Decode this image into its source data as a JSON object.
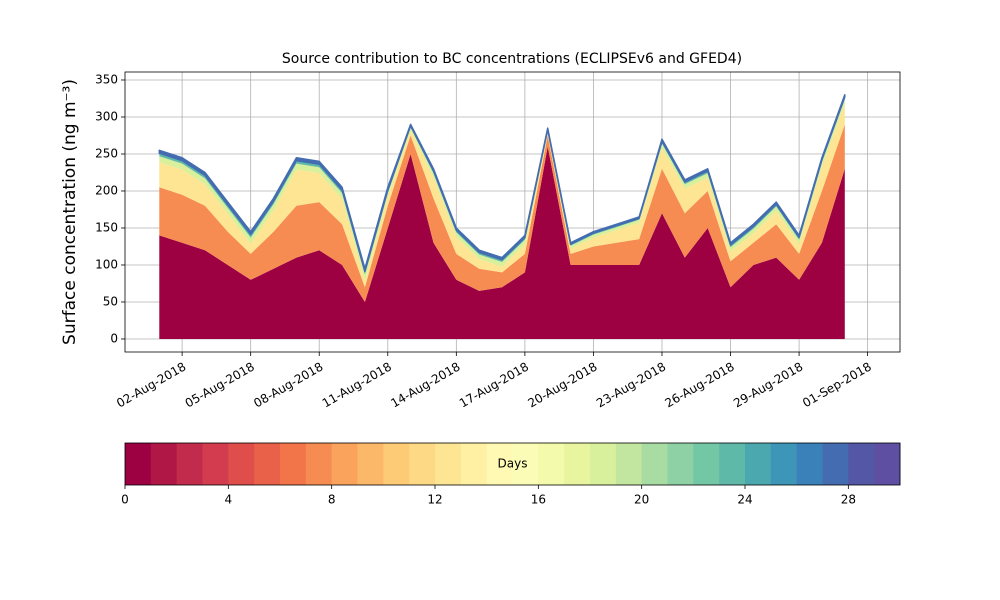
{
  "chart_data": {
    "type": "stacked_area",
    "title": "Source contribution to BC concentrations (ECLIPSEv6 and GFED4)",
    "y_label": "Surface concentration (ng m⁻³)",
    "x": [
      "2018-08-01",
      "2018-08-02",
      "2018-08-03",
      "2018-08-04",
      "2018-08-05",
      "2018-08-06",
      "2018-08-07",
      "2018-08-08",
      "2018-08-09",
      "2018-08-10",
      "2018-08-11",
      "2018-08-12",
      "2018-08-13",
      "2018-08-14",
      "2018-08-15",
      "2018-08-16",
      "2018-08-17",
      "2018-08-18",
      "2018-08-19",
      "2018-08-20",
      "2018-08-21",
      "2018-08-22",
      "2018-08-23",
      "2018-08-24",
      "2018-08-25",
      "2018-08-26",
      "2018-08-27",
      "2018-08-28",
      "2018-08-29",
      "2018-08-30",
      "2018-08-31"
    ],
    "series": [
      {
        "color": "#9e0142",
        "values": [
          140,
          130,
          120,
          100,
          80,
          95,
          110,
          120,
          100,
          50,
          150,
          250,
          130,
          80,
          65,
          70,
          90,
          260,
          100,
          100,
          100,
          100,
          170,
          110,
          150,
          70,
          100,
          110,
          80,
          130,
          230
        ]
      },
      {
        "color": "#f68c52",
        "values": [
          65,
          65,
          60,
          45,
          35,
          50,
          70,
          65,
          55,
          20,
          30,
          25,
          60,
          35,
          30,
          20,
          25,
          15,
          15,
          25,
          30,
          35,
          60,
          60,
          50,
          35,
          30,
          45,
          35,
          70,
          60
        ]
      },
      {
        "color": "#fee593",
        "values": [
          34,
          34,
          29,
          24,
          14,
          29,
          49,
          39,
          34,
          9,
          13,
          7,
          28,
          23,
          13,
          8,
          13,
          4,
          7,
          12,
          17,
          22,
          28,
          33,
          18,
          13,
          13,
          18,
          13,
          33,
          28
        ]
      },
      {
        "color": "#d8ef9c",
        "values": [
          8,
          8,
          8,
          8,
          8,
          8,
          8,
          8,
          8,
          8,
          4,
          4,
          6,
          6,
          6,
          6,
          6,
          2,
          4,
          4,
          4,
          4,
          6,
          6,
          6,
          6,
          6,
          6,
          6,
          6,
          6
        ]
      },
      {
        "color": "#5fb9a9",
        "values": [
          4,
          4,
          4,
          4,
          4,
          4,
          4,
          4,
          4,
          4,
          4,
          2,
          3,
          3,
          3,
          3,
          3,
          2,
          2,
          2,
          2,
          2,
          3,
          3,
          3,
          3,
          3,
          3,
          3,
          3,
          3
        ]
      },
      {
        "color": "#446cb0",
        "values": [
          4,
          4,
          4,
          4,
          4,
          4,
          4,
          4,
          4,
          4,
          4,
          2,
          3,
          3,
          3,
          3,
          3,
          2,
          2,
          2,
          2,
          2,
          3,
          3,
          3,
          3,
          3,
          3,
          3,
          3,
          3
        ]
      }
    ],
    "xlim": [
      "2018-07-30T12:00:00Z",
      "2018-09-02T10:00:00Z"
    ],
    "xticks": [
      {
        "value": "2018-08-02",
        "label": "02-Aug-2018"
      },
      {
        "value": "2018-08-05",
        "label": "05-Aug-2018"
      },
      {
        "value": "2018-08-08",
        "label": "08-Aug-2018"
      },
      {
        "value": "2018-08-11",
        "label": "11-Aug-2018"
      },
      {
        "value": "2018-08-14",
        "label": "14-Aug-2018"
      },
      {
        "value": "2018-08-17",
        "label": "17-Aug-2018"
      },
      {
        "value": "2018-08-20",
        "label": "20-Aug-2018"
      },
      {
        "value": "2018-08-23",
        "label": "23-Aug-2018"
      },
      {
        "value": "2018-08-26",
        "label": "26-Aug-2018"
      },
      {
        "value": "2018-08-29",
        "label": "29-Aug-2018"
      },
      {
        "value": "2018-09-01",
        "label": "01-Sep-2018"
      }
    ],
    "ylim": [
      -17.6,
      360.8
    ],
    "yticks": [
      0,
      50,
      100,
      150,
      200,
      250,
      300,
      350
    ],
    "grid": true,
    "colorbar": {
      "label": "Days",
      "lim": [
        0,
        30
      ],
      "ticks": [
        0,
        4,
        8,
        12,
        16,
        20,
        24,
        28
      ],
      "colors": [
        "#9e0142",
        "#b01747",
        "#c22b4b",
        "#d33c4e",
        "#df4e4b",
        "#e86148",
        "#f2754a",
        "#f68c52",
        "#f9a35d",
        "#fbb868",
        "#fdca76",
        "#fdd985",
        "#fee593",
        "#fff0a3",
        "#fff9b4",
        "#fbfdb7",
        "#f3faab",
        "#e8f59e",
        "#d8ef9c",
        "#c2e69f",
        "#a8dca2",
        "#8ed1a4",
        "#74c7a5",
        "#5fb9a9",
        "#4ba8ae",
        "#3d95b8",
        "#3a80b9",
        "#446cb0",
        "#5357a5",
        "#5e4fa2"
      ]
    }
  }
}
